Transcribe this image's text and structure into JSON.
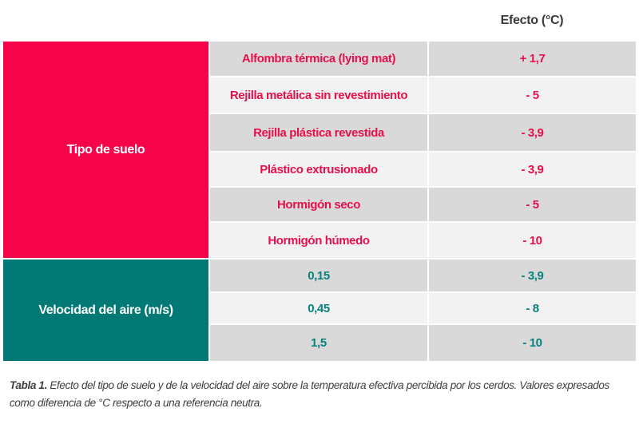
{
  "header": {
    "effect_label": "Efecto (°C)"
  },
  "groups": [
    {
      "label": "Tipo de suelo",
      "color": "#f5044a",
      "rows": [
        {
          "factor": "Alfombra térmica (lying mat)",
          "effect": "+ 1,7"
        },
        {
          "factor": "Rejilla metálica sin revestimiento",
          "effect": "- 5"
        },
        {
          "factor": "Rejilla plástica revestida",
          "effect": "- 3,9"
        },
        {
          "factor": "Plástico extrusionado",
          "effect": "- 3,9"
        },
        {
          "factor": "Hormigón seco",
          "effect": "- 5"
        },
        {
          "factor": "Hormigón húmedo",
          "effect": "- 10"
        }
      ]
    },
    {
      "label": "Velocidad del aire (m/s)",
      "color": "#037975",
      "rows": [
        {
          "factor": "0,15",
          "effect": "- 3,9"
        },
        {
          "factor": "0,45",
          "effect": "- 8"
        },
        {
          "factor": "1,5",
          "effect": "- 10"
        }
      ]
    }
  ],
  "caption": {
    "label": "Tabla 1.",
    "text": "Efecto del tipo de suelo y de la velocidad del aire sobre la temperatura efectiva percibida por los cerdos. Valores expresados como diferencia de °C respecto a una referencia neutra."
  }
}
